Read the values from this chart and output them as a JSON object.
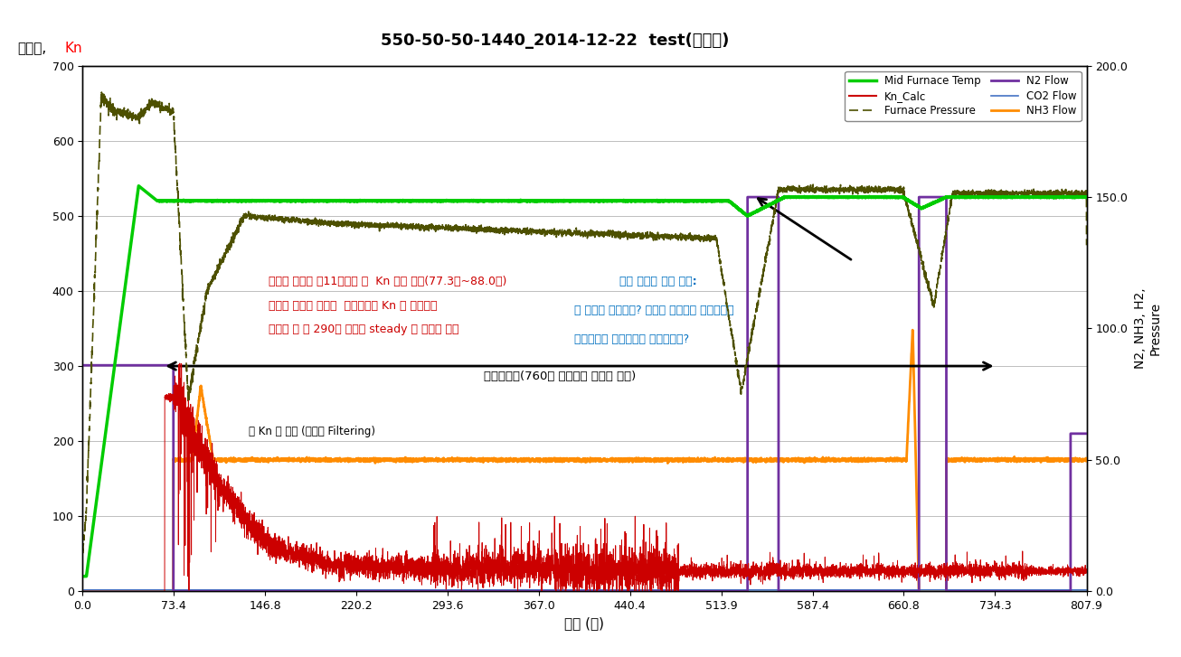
{
  "title": "550-50-50-1440_2014-12-22  test(순질화)",
  "ylabel_left_1": "로온도,",
  "ylabel_left_2": "Kn",
  "ylabel_right": "N2, NH3, H2,\nPressure",
  "xlabel": "시간 (분)",
  "xlim": [
    0,
    807.9
  ],
  "ylim_left": [
    0,
    700
  ],
  "ylim_right": [
    0,
    200
  ],
  "xticks": [
    0.0,
    73.4,
    146.8,
    220.2,
    293.6,
    367.0,
    440.4,
    513.9,
    587.4,
    660.8,
    734.3,
    807.9
  ],
  "yticks_left": [
    0,
    100,
    200,
    300,
    400,
    500,
    600,
    700
  ],
  "yticks_right": [
    0.0,
    50.0,
    100.0,
    150.0,
    200.0
  ],
  "background_color": "#ffffff",
  "grid_color": "#bebebe",
  "annotation1": "본작업 시작후 약11분경과 후  Kn 변동 시작(77.3분~88.0분)",
  "annotation2": "완만한 경사를 이루며  지속적으로 Kn 값 감소경향",
  "annotation3": "본작업 후 약 290분 경과후 steady 한 상태에 도달",
  "annotation4": "로내 압력이 다시 상승:",
  "annotation5": "왜 압력이 오르는가? 질소의 빈자리를 암모니아가",
  "annotation6": "분해되면서 평형상태를 유지하려고?",
  "annotation7": "본작업구간(760분 경과후의 데이터 없음)",
  "annotation8": "실 Kn 값 표시 (일부값 Filtering)"
}
